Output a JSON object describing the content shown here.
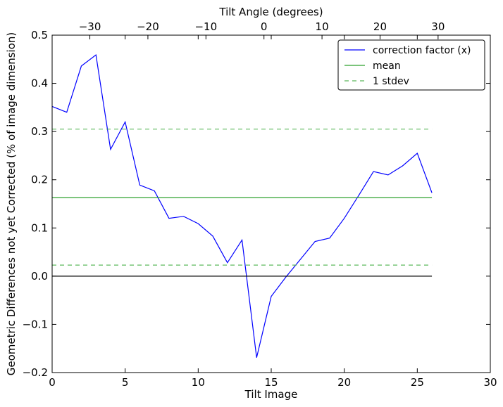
{
  "chart_data": {
    "type": "line",
    "xlabel": "Tilt Image",
    "ylabel": "Geometric Differences not yet Corrected (% of image dimension)",
    "top_xlabel": "Tilt Angle (degrees)",
    "xlim": [
      0,
      30
    ],
    "ylim": [
      -0.2,
      0.5
    ],
    "top_xlim": [
      -36.5,
      39
    ],
    "x_ticks": [
      0,
      5,
      10,
      15,
      20,
      25,
      30
    ],
    "x_tick_labels": [
      "0",
      "5",
      "10",
      "15",
      "20",
      "25",
      "30"
    ],
    "y_ticks": [
      -0.2,
      -0.1,
      0.0,
      0.1,
      0.2,
      0.3,
      0.4,
      0.5
    ],
    "y_tick_labels": [
      "−0.2",
      "−0.1",
      "0.0",
      "0.1",
      "0.2",
      "0.3",
      "0.4",
      "0.5"
    ],
    "top_ticks": [
      -30,
      -20,
      -10,
      0,
      10,
      20,
      30
    ],
    "top_tick_labels": [
      "−30",
      "−20",
      "−10",
      "0",
      "10",
      "20",
      "30"
    ],
    "grid": false,
    "legend_position": "top-right",
    "series": [
      {
        "name": "correction factor (x)",
        "color": "#0000ff",
        "style": "solid",
        "x": [
          0,
          1,
          2,
          3,
          4,
          5,
          6,
          7,
          8,
          9,
          10,
          11,
          12,
          13,
          14,
          15,
          16,
          17,
          18,
          19,
          20,
          21,
          22,
          23,
          24,
          25,
          26
        ],
        "values": [
          0.352,
          0.34,
          0.436,
          0.459,
          0.263,
          0.32,
          0.189,
          0.177,
          0.12,
          0.124,
          0.109,
          0.083,
          0.028,
          0.075,
          -0.169,
          -0.042,
          -0.002,
          0.035,
          0.072,
          0.079,
          0.12,
          0.168,
          0.217,
          0.21,
          0.229,
          0.255,
          0.173
        ]
      },
      {
        "name": "mean",
        "color": "#2ca02c",
        "style": "solid",
        "x": [
          0,
          26
        ],
        "values": [
          0.163,
          0.163
        ]
      },
      {
        "name": "1 stdev",
        "color": "#5cb85c",
        "style": "dashed",
        "x": [
          0,
          26
        ],
        "values": [
          0.305,
          0.305
        ]
      },
      {
        "name": "",
        "color": "#5cb85c",
        "style": "dashed",
        "x": [
          0,
          26
        ],
        "values": [
          0.023,
          0.023
        ]
      },
      {
        "name": "",
        "color": "#000000",
        "style": "solid",
        "x": [
          0,
          26
        ],
        "values": [
          0.0,
          0.0
        ]
      }
    ],
    "legend": [
      {
        "label": "correction factor (x)",
        "color": "#0000ff",
        "style": "solid"
      },
      {
        "label": "mean",
        "color": "#2ca02c",
        "style": "solid"
      },
      {
        "label": "1 stdev",
        "color": "#5cb85c",
        "style": "dashed"
      }
    ]
  }
}
